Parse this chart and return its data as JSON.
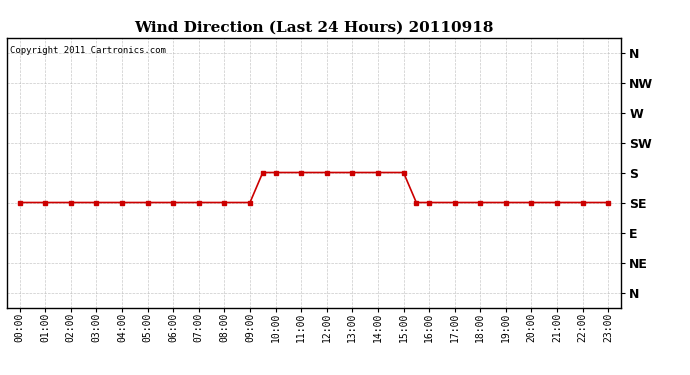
{
  "title": "Wind Direction (Last 24 Hours) 20110918",
  "copyright_text": "Copyright 2011 Cartronics.com",
  "background_color": "#ffffff",
  "line_color": "#cc0000",
  "marker": "s",
  "markersize": 3,
  "linewidth": 1.2,
  "ytick_labels": [
    "N",
    "NW",
    "W",
    "SW",
    "S",
    "SE",
    "E",
    "NE",
    "N"
  ],
  "ytick_values": [
    8,
    7,
    6,
    5,
    4,
    3,
    2,
    1,
    0
  ],
  "hours": [
    0,
    1,
    2,
    3,
    4,
    5,
    6,
    7,
    8,
    9,
    9.5,
    10,
    11,
    12,
    13,
    14,
    15,
    15.5,
    16,
    17,
    18,
    19,
    20,
    21,
    22,
    23
  ],
  "wind_values": [
    3,
    3,
    3,
    3,
    3,
    3,
    3,
    3,
    3,
    3,
    4,
    4,
    4,
    4,
    4,
    4,
    4,
    3,
    3,
    3,
    3,
    3,
    3,
    3,
    3,
    3
  ],
  "xlim": [
    -0.5,
    23.5
  ],
  "ylim": [
    -0.5,
    8.5
  ],
  "grid_color": "#bbbbbb",
  "grid_linestyle": "--",
  "grid_linewidth": 0.5,
  "grid_alpha": 0.8,
  "title_fontsize": 11,
  "tick_fontsize": 7,
  "ytick_fontsize": 9,
  "copyright_fontsize": 6.5
}
